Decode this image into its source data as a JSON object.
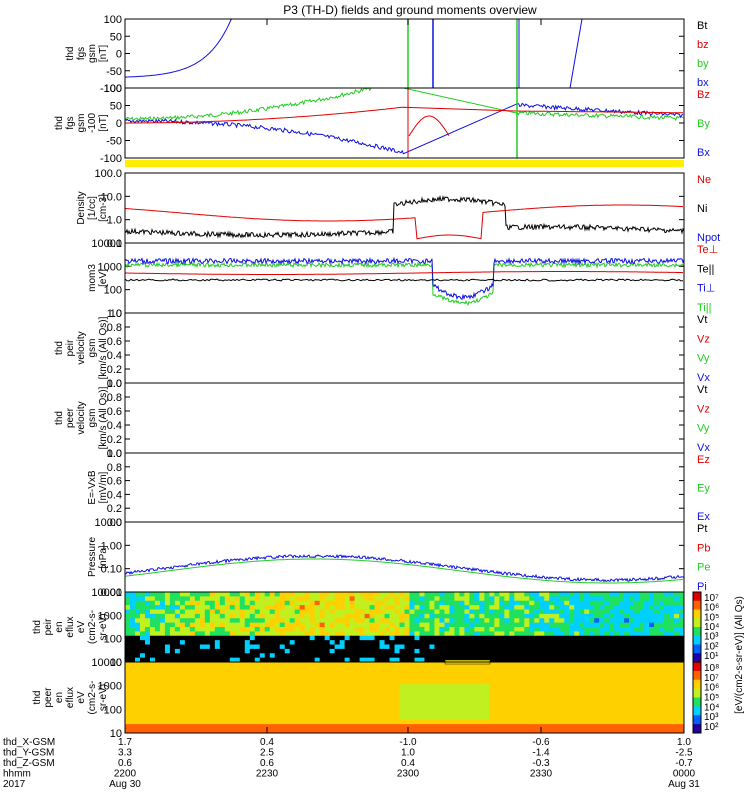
{
  "title": "P3 (TH-D) fields and ground moments overview",
  "colors": {
    "black": "#000000",
    "red": "#e00000",
    "green": "#22cc22",
    "blue": "#1010e0",
    "yellow": "#ffee00"
  },
  "chart_data": [
    {
      "type": "line",
      "ylabel": [
        "thd",
        "fgs",
        "gsm",
        "[nT]"
      ],
      "yticks": [
        "100",
        "50",
        "0",
        "-50",
        "-100"
      ],
      "legend": [
        {
          "name": "Bt",
          "color": "black"
        },
        {
          "name": "bz",
          "color": "red"
        },
        {
          "name": "by",
          "color": "green"
        },
        {
          "name": "bx",
          "color": "blue"
        }
      ]
    },
    {
      "type": "line",
      "ylabel": [
        "thd",
        "fgs",
        "gsm",
        "-100",
        "[nT]"
      ],
      "yticks": [
        "100",
        "50",
        "0",
        "-50",
        "-100"
      ],
      "legend": [
        {
          "name": "Bz",
          "color": "red"
        },
        {
          "name": "By",
          "color": "green"
        },
        {
          "name": "Bx",
          "color": "blue"
        }
      ]
    },
    {
      "type": "line",
      "ylabel": [
        "Density",
        "[1/cc]",
        "[cm-3]"
      ],
      "yticks": [
        "100.0",
        "10.0",
        "1.0",
        "0.1"
      ],
      "legend": [
        {
          "name": "Ne",
          "color": "red"
        },
        {
          "name": "Ni",
          "color": "black"
        },
        {
          "name": "Npot",
          "color": "blue"
        }
      ]
    },
    {
      "type": "line",
      "ylabel": [
        "mom3",
        "[eV]"
      ],
      "yticks": [
        "10000",
        "1000",
        "100",
        "10"
      ],
      "legend": [
        {
          "name": "Te⊥",
          "color": "red"
        },
        {
          "name": "Te||",
          "color": "black"
        },
        {
          "name": "Ti⊥",
          "color": "blue"
        },
        {
          "name": "Ti||",
          "color": "green"
        }
      ]
    },
    {
      "type": "line",
      "ylabel": [
        "thd",
        "peir",
        "velocity",
        "gsm",
        "[km/s (All Qs)]"
      ],
      "yticks": [
        "1.0",
        "0.8",
        "0.6",
        "0.4",
        "0.2",
        "0.0"
      ],
      "legend": [
        {
          "name": "Vt",
          "color": "black"
        },
        {
          "name": "Vz",
          "color": "red"
        },
        {
          "name": "Vy",
          "color": "green"
        },
        {
          "name": "Vx",
          "color": "blue"
        }
      ]
    },
    {
      "type": "line",
      "ylabel": [
        "thd",
        "peer",
        "velocity",
        "gsm",
        "[km/s (All Qs)]"
      ],
      "yticks": [
        "1.0",
        "0.8",
        "0.6",
        "0.4",
        "0.2",
        "0.0"
      ],
      "legend": [
        {
          "name": "Vt",
          "color": "black"
        },
        {
          "name": "Vz",
          "color": "red"
        },
        {
          "name": "Vy",
          "color": "green"
        },
        {
          "name": "Vx",
          "color": "blue"
        }
      ]
    },
    {
      "type": "line",
      "ylabel": [
        "E=-VxB",
        "[mV/m]"
      ],
      "yticks": [
        "1.0",
        "0.8",
        "0.6",
        "0.4",
        "0.2",
        "0.0"
      ],
      "legend": [
        {
          "name": "Ez",
          "color": "red"
        },
        {
          "name": "Ey",
          "color": "green"
        },
        {
          "name": "Ex",
          "color": "blue"
        }
      ]
    },
    {
      "type": "line",
      "ylabel": [
        "Pressure",
        "[nPa]"
      ],
      "yticks": [
        "10.00",
        "1.00",
        "0.10",
        "0.01"
      ],
      "legend": [
        {
          "name": "Pt",
          "color": "black"
        },
        {
          "name": "Pb",
          "color": "red"
        },
        {
          "name": "Pe",
          "color": "green"
        },
        {
          "name": "Pi",
          "color": "blue"
        }
      ]
    },
    {
      "type": "heatmap",
      "ylabel": [
        "thd",
        "peir",
        "en",
        "eflux",
        "eV",
        "(cm2-s-",
        "sr-eV)"
      ],
      "yticks": [
        "10000",
        "1000",
        "100",
        "10"
      ]
    },
    {
      "type": "heatmap",
      "ylabel": [
        "thd",
        "peer",
        "en",
        "eflux",
        "eV",
        "(cm2-s-",
        "sr-eV)"
      ],
      "yticks": [
        "10000",
        "1000",
        "100",
        "10"
      ]
    }
  ],
  "colorbars": [
    {
      "ticks": [
        "10⁷",
        "10⁶",
        "10⁵",
        "10⁴",
        "10³",
        "10²",
        "10¹"
      ],
      "label": "[eV/(cm2-s-sr-eV)] (All Qs)"
    },
    {
      "ticks": [
        "10⁸",
        "10⁷",
        "10⁶",
        "10⁵",
        "10⁴",
        "10³",
        "10²"
      ],
      "label": "[eV/(cm2-s-sr-eV)]"
    }
  ],
  "xaxis": {
    "rows": [
      {
        "label": "thd_X-GSM",
        "values": [
          "1.7",
          "0.4",
          "-1.0",
          "-0.6",
          "1.0"
        ]
      },
      {
        "label": "thd_Y-GSM",
        "values": [
          "3.3",
          "2.5",
          "1.0",
          "-1.4",
          "-2.5"
        ]
      },
      {
        "label": "thd_Z-GSM",
        "values": [
          "0.6",
          "0.6",
          "0.4",
          "-0.3",
          "-0.7"
        ]
      },
      {
        "label": "hhmm",
        "values": [
          "2200",
          "2230",
          "2300",
          "2330",
          "0000"
        ]
      },
      {
        "label": "2017",
        "values": [
          "Aug 30",
          "",
          "",
          "",
          "Aug 31"
        ]
      }
    ]
  }
}
